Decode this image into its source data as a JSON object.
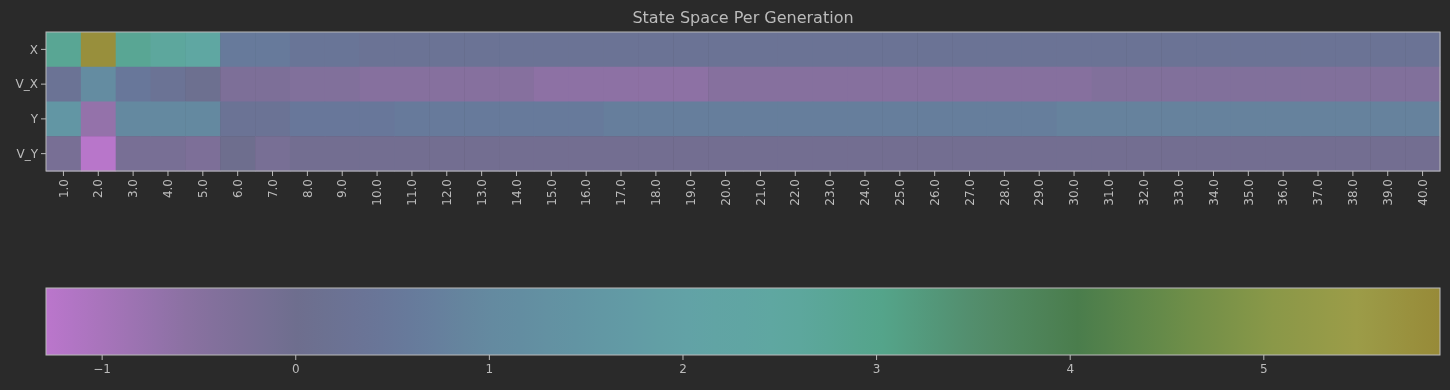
{
  "chart_data": {
    "type": "heatmap",
    "title": "State Space Per Generation",
    "categories": [
      "1.0",
      "2.0",
      "3.0",
      "4.0",
      "5.0",
      "6.0",
      "7.0",
      "8.0",
      "9.0",
      "10.0",
      "11.0",
      "12.0",
      "13.0",
      "14.0",
      "15.0",
      "16.0",
      "17.0",
      "18.0",
      "19.0",
      "20.0",
      "21.0",
      "22.0",
      "23.0",
      "24.0",
      "25.0",
      "26.0",
      "27.0",
      "28.0",
      "29.0",
      "30.0",
      "31.0",
      "32.0",
      "33.0",
      "34.0",
      "35.0",
      "36.0",
      "37.0",
      "38.0",
      "39.0",
      "40.0"
    ],
    "y_categories": [
      "X",
      "V_X",
      "Y",
      "V_Y"
    ],
    "cells": [
      [
        2.8,
        5.8,
        2.8,
        2.6,
        2.4,
        0.6,
        0.6,
        0.4,
        0.4,
        0.3,
        0.3,
        0.3,
        0.3,
        0.3,
        0.3,
        0.3,
        0.3,
        0.3,
        0.3,
        0.3,
        0.3,
        0.3,
        0.3,
        0.3,
        0.3,
        0.3,
        0.3,
        0.3,
        0.3,
        0.3,
        0.3,
        0.3,
        0.3,
        0.3,
        0.3,
        0.3,
        0.3,
        0.3,
        0.3,
        0.3
      ],
      [
        0.3,
        1.1,
        0.5,
        0.3,
        0.1,
        -0.3,
        -0.3,
        -0.4,
        -0.4,
        -0.5,
        -0.5,
        -0.5,
        -0.5,
        -0.5,
        -0.6,
        -0.6,
        -0.6,
        -0.6,
        -0.6,
        -0.5,
        -0.5,
        -0.5,
        -0.5,
        -0.5,
        -0.5,
        -0.5,
        -0.5,
        -0.5,
        -0.5,
        -0.5,
        -0.4,
        -0.4,
        -0.4,
        -0.4,
        -0.4,
        -0.4,
        -0.4,
        -0.4,
        -0.4,
        -0.4
      ],
      [
        1.5,
        -0.7,
        1.0,
        1.0,
        1.0,
        0.3,
        0.3,
        0.5,
        0.5,
        0.5,
        0.6,
        0.6,
        0.6,
        0.6,
        0.6,
        0.6,
        0.7,
        0.7,
        0.7,
        0.7,
        0.7,
        0.7,
        0.7,
        0.7,
        0.7,
        0.7,
        0.7,
        0.7,
        0.7,
        0.8,
        0.8,
        0.8,
        0.8,
        0.8,
        0.8,
        0.8,
        0.8,
        0.8,
        0.8,
        0.8
      ],
      [
        -0.2,
        -1.25,
        -0.2,
        -0.2,
        -0.3,
        0.0,
        -0.2,
        -0.1,
        -0.1,
        -0.1,
        -0.1,
        -0.1,
        -0.1,
        -0.1,
        -0.1,
        -0.1,
        -0.1,
        -0.1,
        -0.1,
        -0.1,
        -0.1,
        -0.1,
        -0.1,
        -0.1,
        -0.1,
        -0.1,
        -0.1,
        -0.1,
        -0.1,
        -0.1,
        -0.1,
        -0.1,
        -0.1,
        -0.1,
        -0.1,
        -0.1,
        -0.1,
        -0.1,
        -0.1,
        -0.1
      ]
    ],
    "clim": [
      -1.29,
      5.91
    ],
    "cticks": [
      -1,
      0,
      1,
      2,
      3,
      4,
      5
    ]
  }
}
